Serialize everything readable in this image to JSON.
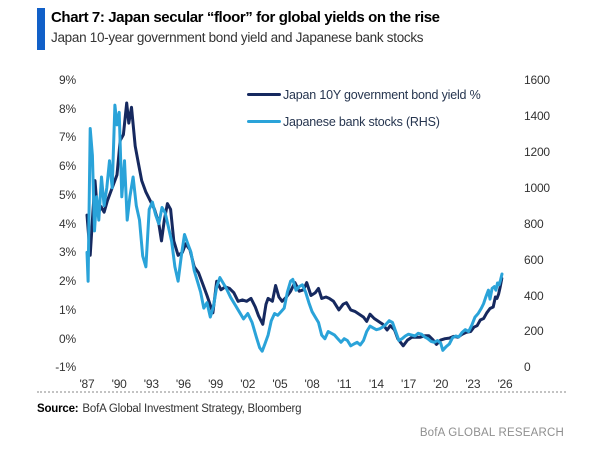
{
  "header": {
    "title": "Chart 7: Japan secular “floor” for global yields on the rise",
    "subtitle": "Japan 10-year government bond yield and Japanese bank stocks",
    "accent_color": "#1160c8"
  },
  "chart_data": {
    "type": "line",
    "title": "Japan 10-year government bond yield and Japanese bank stocks",
    "grid": false,
    "legend_position": "top-inside",
    "x_axis": {
      "range": [
        1987,
        2026
      ],
      "tick_years": [
        1987,
        1990,
        1993,
        1996,
        1999,
        2002,
        2005,
        2008,
        2011,
        2014,
        2017,
        2020,
        2023,
        2026
      ],
      "tick_labels": [
        "'87",
        "'90",
        "'93",
        "'96",
        "'99",
        "'02",
        "'05",
        "'08",
        "'11",
        "'14",
        "'17",
        "'20",
        "'23",
        "'26"
      ]
    },
    "y_axis_left": {
      "range": [
        -1,
        9
      ],
      "tick_values": [
        9,
        8,
        7,
        6,
        5,
        4,
        3,
        2,
        1,
        0,
        -1
      ],
      "tick_labels": [
        "9%",
        "8%",
        "7%",
        "6%",
        "5%",
        "4%",
        "3%",
        "2%",
        "1%",
        "0%",
        "-1%"
      ]
    },
    "y_axis_right": {
      "range": [
        0,
        1600
      ],
      "tick_values": [
        1600,
        1400,
        1200,
        1000,
        800,
        600,
        400,
        200,
        0
      ],
      "tick_labels": [
        "1600",
        "1400",
        "1200",
        "1000",
        "800",
        "600",
        "400",
        "200",
        "0"
      ]
    },
    "series": [
      {
        "name": "Japan 10Y government bond yield %",
        "color": "#16295f",
        "axis": "left",
        "points": [
          [
            1987.0,
            4.3
          ],
          [
            1987.15,
            3.6
          ],
          [
            1987.3,
            2.9
          ],
          [
            1987.55,
            4.4
          ],
          [
            1987.75,
            5.5
          ],
          [
            1988.0,
            4.3
          ],
          [
            1988.3,
            4.6
          ],
          [
            1988.6,
            4.4
          ],
          [
            1988.9,
            4.8
          ],
          [
            1989.2,
            5.1
          ],
          [
            1989.5,
            5.4
          ],
          [
            1989.8,
            5.7
          ],
          [
            1990.1,
            6.9
          ],
          [
            1990.4,
            7.1
          ],
          [
            1990.7,
            8.2
          ],
          [
            1990.9,
            7.5
          ],
          [
            1991.15,
            8.05
          ],
          [
            1991.5,
            6.7
          ],
          [
            1991.8,
            6.1
          ],
          [
            1992.1,
            5.5
          ],
          [
            1992.5,
            5.1
          ],
          [
            1992.9,
            4.8
          ],
          [
            1993.3,
            4.5
          ],
          [
            1993.7,
            4.0
          ],
          [
            1993.95,
            3.4
          ],
          [
            1994.2,
            4.1
          ],
          [
            1994.5,
            4.7
          ],
          [
            1994.8,
            4.5
          ],
          [
            1995.1,
            3.4
          ],
          [
            1995.5,
            2.9
          ],
          [
            1995.9,
            3.0
          ],
          [
            1996.2,
            3.3
          ],
          [
            1996.6,
            3.1
          ],
          [
            1997.0,
            2.5
          ],
          [
            1997.4,
            2.3
          ],
          [
            1997.8,
            1.9
          ],
          [
            1998.2,
            1.5
          ],
          [
            1998.75,
            0.9
          ],
          [
            1999.1,
            2.0
          ],
          [
            1999.5,
            1.7
          ],
          [
            1999.9,
            1.8
          ],
          [
            2000.3,
            1.75
          ],
          [
            2000.7,
            1.6
          ],
          [
            2001.1,
            1.3
          ],
          [
            2001.5,
            1.35
          ],
          [
            2001.9,
            1.3
          ],
          [
            2002.3,
            1.4
          ],
          [
            2002.7,
            1.1
          ],
          [
            2003.0,
            0.8
          ],
          [
            2003.4,
            0.5
          ],
          [
            2003.7,
            1.2
          ],
          [
            2003.9,
            1.4
          ],
          [
            2004.3,
            1.3
          ],
          [
            2004.6,
            1.85
          ],
          [
            2004.9,
            1.45
          ],
          [
            2005.2,
            1.3
          ],
          [
            2005.6,
            1.45
          ],
          [
            2006.0,
            1.65
          ],
          [
            2006.4,
            1.95
          ],
          [
            2006.8,
            1.65
          ],
          [
            2007.2,
            1.7
          ],
          [
            2007.5,
            1.95
          ],
          [
            2007.9,
            1.5
          ],
          [
            2008.3,
            1.6
          ],
          [
            2008.6,
            1.75
          ],
          [
            2008.9,
            1.4
          ],
          [
            2009.3,
            1.45
          ],
          [
            2009.6,
            1.4
          ],
          [
            2010.0,
            1.3
          ],
          [
            2010.5,
            1.0
          ],
          [
            2010.9,
            1.2
          ],
          [
            2011.2,
            1.25
          ],
          [
            2011.6,
            1.0
          ],
          [
            2012.0,
            0.95
          ],
          [
            2012.4,
            0.85
          ],
          [
            2012.8,
            0.75
          ],
          [
            2013.1,
            0.6
          ],
          [
            2013.4,
            0.85
          ],
          [
            2013.8,
            0.7
          ],
          [
            2014.2,
            0.6
          ],
          [
            2014.6,
            0.5
          ],
          [
            2015.0,
            0.3
          ],
          [
            2015.3,
            0.45
          ],
          [
            2015.7,
            0.3
          ],
          [
            2016.0,
            0.0
          ],
          [
            2016.5,
            -0.25
          ],
          [
            2016.9,
            -0.05
          ],
          [
            2017.3,
            0.05
          ],
          [
            2017.7,
            0.05
          ],
          [
            2018.1,
            0.05
          ],
          [
            2018.5,
            0.1
          ],
          [
            2018.9,
            0.1
          ],
          [
            2019.3,
            -0.05
          ],
          [
            2019.6,
            -0.2
          ],
          [
            2020.0,
            -0.05
          ],
          [
            2020.4,
            0.0
          ],
          [
            2020.8,
            0.02
          ],
          [
            2021.2,
            0.08
          ],
          [
            2021.6,
            0.05
          ],
          [
            2022.0,
            0.15
          ],
          [
            2022.4,
            0.22
          ],
          [
            2022.8,
            0.25
          ],
          [
            2023.1,
            0.4
          ],
          [
            2023.4,
            0.45
          ],
          [
            2023.7,
            0.65
          ],
          [
            2024.0,
            0.7
          ],
          [
            2024.3,
            0.9
          ],
          [
            2024.6,
            1.05
          ],
          [
            2024.9,
            1.1
          ],
          [
            2025.1,
            1.45
          ],
          [
            2025.25,
            1.4
          ],
          [
            2025.4,
            1.55
          ],
          [
            2025.55,
            1.8
          ],
          [
            2025.7,
            2.1
          ]
        ]
      },
      {
        "name": "Japanese bank stocks (RHS)",
        "color": "#2aa3d9",
        "axis": "right",
        "points": [
          [
            1987.0,
            640
          ],
          [
            1987.1,
            480
          ],
          [
            1987.3,
            1330
          ],
          [
            1987.5,
            1180
          ],
          [
            1987.7,
            760
          ],
          [
            1987.9,
            950
          ],
          [
            1988.1,
            820
          ],
          [
            1988.35,
            1060
          ],
          [
            1988.6,
            900
          ],
          [
            1988.85,
            1000
          ],
          [
            1989.1,
            1150
          ],
          [
            1989.35,
            1000
          ],
          [
            1989.6,
            1460
          ],
          [
            1989.8,
            1350
          ],
          [
            1990.0,
            1420
          ],
          [
            1990.25,
            950
          ],
          [
            1990.5,
            1150
          ],
          [
            1990.75,
            820
          ],
          [
            1991.0,
            950
          ],
          [
            1991.3,
            1060
          ],
          [
            1991.6,
            900
          ],
          [
            1991.9,
            820
          ],
          [
            1992.2,
            620
          ],
          [
            1992.5,
            560
          ],
          [
            1992.8,
            880
          ],
          [
            1993.1,
            920
          ],
          [
            1993.4,
            850
          ],
          [
            1993.7,
            800
          ],
          [
            1994.0,
            890
          ],
          [
            1994.3,
            860
          ],
          [
            1994.6,
            780
          ],
          [
            1994.9,
            700
          ],
          [
            1995.2,
            560
          ],
          [
            1995.5,
            480
          ],
          [
            1995.8,
            620
          ],
          [
            1996.1,
            740
          ],
          [
            1996.4,
            690
          ],
          [
            1996.7,
            640
          ],
          [
            1997.0,
            540
          ],
          [
            1997.3,
            480
          ],
          [
            1997.6,
            420
          ],
          [
            1997.9,
            330
          ],
          [
            1998.2,
            360
          ],
          [
            1998.5,
            280
          ],
          [
            1998.8,
            340
          ],
          [
            1999.1,
            450
          ],
          [
            1999.4,
            500
          ],
          [
            1999.7,
            470
          ],
          [
            2000.0,
            440
          ],
          [
            2000.4,
            390
          ],
          [
            2000.8,
            350
          ],
          [
            2001.2,
            310
          ],
          [
            2001.6,
            270
          ],
          [
            2002.0,
            300
          ],
          [
            2002.4,
            250
          ],
          [
            2002.8,
            170
          ],
          [
            2003.1,
            110
          ],
          [
            2003.35,
            90
          ],
          [
            2003.6,
            130
          ],
          [
            2003.9,
            180
          ],
          [
            2004.2,
            260
          ],
          [
            2004.5,
            300
          ],
          [
            2004.8,
            290
          ],
          [
            2005.1,
            310
          ],
          [
            2005.4,
            330
          ],
          [
            2005.7,
            420
          ],
          [
            2006.0,
            480
          ],
          [
            2006.2,
            490
          ],
          [
            2006.5,
            430
          ],
          [
            2006.8,
            450
          ],
          [
            2007.1,
            460
          ],
          [
            2007.4,
            420
          ],
          [
            2007.7,
            360
          ],
          [
            2008.0,
            310
          ],
          [
            2008.3,
            280
          ],
          [
            2008.6,
            250
          ],
          [
            2008.9,
            180
          ],
          [
            2009.2,
            160
          ],
          [
            2009.5,
            200
          ],
          [
            2009.8,
            190
          ],
          [
            2010.1,
            180
          ],
          [
            2010.4,
            160
          ],
          [
            2010.7,
            140
          ],
          [
            2011.0,
            160
          ],
          [
            2011.3,
            150
          ],
          [
            2011.6,
            120
          ],
          [
            2011.9,
            130
          ],
          [
            2012.2,
            140
          ],
          [
            2012.5,
            125
          ],
          [
            2012.8,
            150
          ],
          [
            2013.1,
            200
          ],
          [
            2013.4,
            230
          ],
          [
            2013.7,
            220
          ],
          [
            2014.0,
            210
          ],
          [
            2014.3,
            215
          ],
          [
            2014.6,
            225
          ],
          [
            2014.9,
            240
          ],
          [
            2015.2,
            260
          ],
          [
            2015.5,
            250
          ],
          [
            2015.8,
            200
          ],
          [
            2016.1,
            150
          ],
          [
            2016.4,
            160
          ],
          [
            2016.7,
            175
          ],
          [
            2017.0,
            185
          ],
          [
            2017.3,
            180
          ],
          [
            2017.6,
            175
          ],
          [
            2017.9,
            190
          ],
          [
            2018.2,
            185
          ],
          [
            2018.5,
            170
          ],
          [
            2018.8,
            160
          ],
          [
            2019.1,
            145
          ],
          [
            2019.4,
            140
          ],
          [
            2019.7,
            150
          ],
          [
            2020.0,
            135
          ],
          [
            2020.2,
            95
          ],
          [
            2020.5,
            115
          ],
          [
            2020.8,
            130
          ],
          [
            2021.1,
            165
          ],
          [
            2021.4,
            175
          ],
          [
            2021.7,
            170
          ],
          [
            2022.0,
            195
          ],
          [
            2022.3,
            210
          ],
          [
            2022.6,
            200
          ],
          [
            2022.9,
            235
          ],
          [
            2023.2,
            280
          ],
          [
            2023.5,
            300
          ],
          [
            2023.8,
            330
          ],
          [
            2024.0,
            355
          ],
          [
            2024.2,
            390
          ],
          [
            2024.45,
            430
          ],
          [
            2024.6,
            380
          ],
          [
            2024.8,
            440
          ],
          [
            2025.0,
            450
          ],
          [
            2025.15,
            430
          ],
          [
            2025.3,
            470
          ],
          [
            2025.45,
            460
          ],
          [
            2025.6,
            490
          ],
          [
            2025.72,
            520
          ]
        ]
      }
    ]
  },
  "footer": {
    "source_label": "Source:",
    "source_text": "BofA Global Investment Strategy, Bloomberg",
    "brand": "BofA GLOBAL RESEARCH"
  }
}
